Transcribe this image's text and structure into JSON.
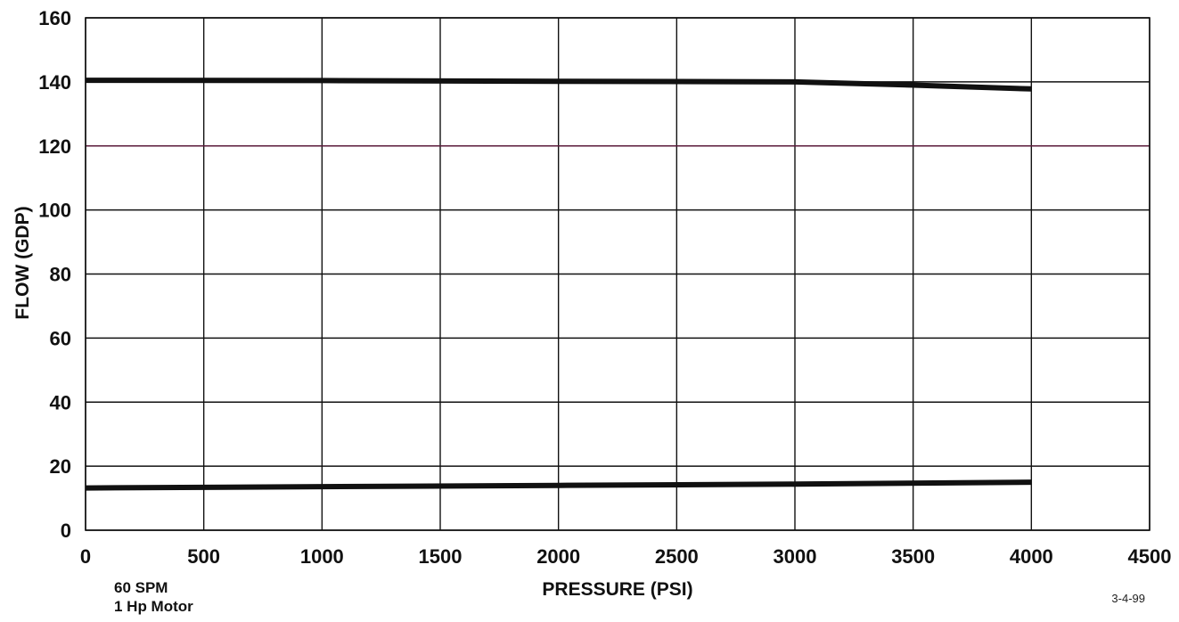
{
  "chart_data": {
    "type": "line",
    "xlabel": "PRESSURE (PSI)",
    "ylabel": "FLOW (GDP)",
    "xlim": [
      0,
      4500
    ],
    "ylim": [
      0,
      160
    ],
    "x_ticks": [
      "0",
      "500",
      "1000",
      "1500",
      "2000",
      "2500",
      "3000",
      "3500",
      "4000",
      "4500"
    ],
    "y_ticks": [
      "0",
      "20",
      "40",
      "60",
      "80",
      "100",
      "120",
      "140",
      "160"
    ],
    "x_tick_values": [
      0,
      500,
      1000,
      1500,
      2000,
      2500,
      3000,
      3500,
      4000,
      4500
    ],
    "y_tick_values": [
      0,
      20,
      40,
      60,
      80,
      100,
      120,
      140,
      160
    ],
    "grid": true,
    "highlight_gridline": {
      "y": 120,
      "color": "#5a1a3a"
    },
    "series": [
      {
        "x": [
          0,
          1000,
          2000,
          3000,
          3500,
          4000
        ],
        "y": [
          140.5,
          140.4,
          140.2,
          140,
          139,
          137.8
        ]
      },
      {
        "x": [
          0,
          1000,
          2000,
          3000,
          4000
        ],
        "y": [
          13.2,
          13.6,
          14,
          14.4,
          15
        ]
      }
    ]
  },
  "annotations": {
    "note_line1": "60 SPM",
    "note_line2": "1 Hp Motor",
    "date": "3-4-99"
  },
  "colors": {
    "line": "#111111",
    "grid": "#111111",
    "background": "#ffffff"
  }
}
